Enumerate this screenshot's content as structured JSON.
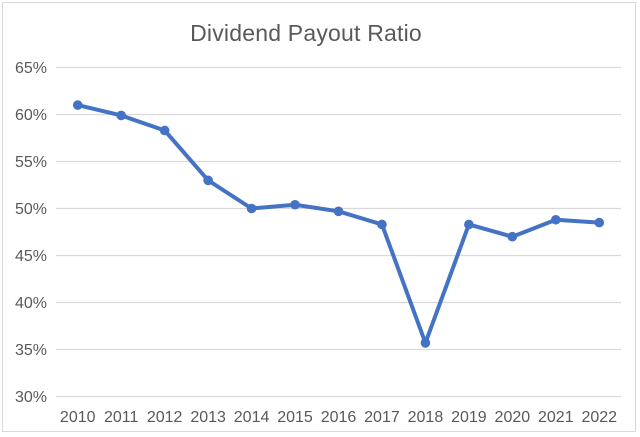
{
  "chart_data": {
    "type": "line",
    "title": "Dividend Payout Ratio",
    "categories": [
      "2010",
      "2011",
      "2012",
      "2013",
      "2014",
      "2015",
      "2016",
      "2017",
      "2018",
      "2019",
      "2020",
      "2021",
      "2022"
    ],
    "series": [
      {
        "name": "Dividend Payout Ratio",
        "values": [
          61.0,
          59.9,
          58.3,
          53.0,
          50.0,
          50.4,
          49.7,
          48.3,
          35.7,
          48.3,
          47.0,
          48.8,
          48.5
        ]
      }
    ],
    "xlabel": "",
    "ylabel": "",
    "y_axis": {
      "min": 30,
      "max": 65,
      "step": 5,
      "tick_labels_top_to_bottom": [
        "65%",
        "60%",
        "55%",
        "50%",
        "45%",
        "40%",
        "35%",
        "30%"
      ]
    },
    "grid": true,
    "legend": "none",
    "colors": {
      "line": "#4472C4",
      "marker": "#4472C4",
      "gridline": "#D9D9D9",
      "axis_text": "#595959",
      "title_text": "#595959",
      "background": "#FFFFFF",
      "border": "#D9D9D9"
    }
  }
}
